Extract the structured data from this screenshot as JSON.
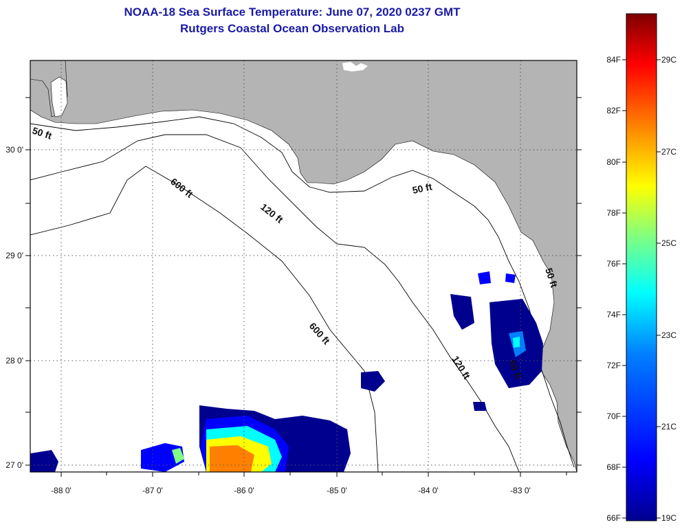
{
  "title": {
    "line1": "NOAA-18 Sea Surface Temperature:  June 07, 2020 0237 GMT",
    "line2": "Rutgers Coastal Ocean Observation Lab"
  },
  "map": {
    "lon_labels": [
      "-88 0'",
      "-87 0'",
      "-86 0'",
      "-85 0'",
      "-84 0'",
      "-83 0'"
    ],
    "lat_labels": [
      "30 0'",
      "29 0'",
      "28 0'",
      "27 0'"
    ],
    "contour_labels": [
      "50 ft",
      "600 ft",
      "120 ft",
      "50 ft",
      "600 ft",
      "120 ft",
      "50 ft",
      "50 ft"
    ],
    "colors": {
      "land": "#b4b4b4",
      "ocean": "#ffffff",
      "frame": "#000000"
    }
  },
  "colorbar": {
    "f_labels": [
      "84F",
      "82F",
      "80F",
      "78F",
      "76F",
      "74F",
      "72F",
      "70F",
      "68F",
      "66F"
    ],
    "c_labels": [
      "29C",
      "27C",
      "25C",
      "23C",
      "21C",
      "19C"
    ],
    "colors": [
      "#7f0000",
      "#ff0000",
      "#ff8000",
      "#ffff00",
      "#80ff80",
      "#00ffff",
      "#0080ff",
      "#0000ff",
      "#00008f"
    ]
  }
}
